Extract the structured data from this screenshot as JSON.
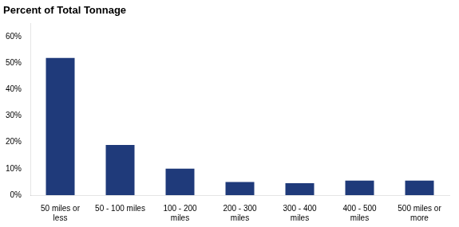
{
  "chart_data": {
    "type": "bar",
    "title": "Percent of Total Tonnage",
    "categories": [
      "50 miles or\nless",
      "50 - 100 miles",
      "100 - 200\nmiles",
      "200 - 300\nmiles",
      "300 - 400\nmiles",
      "400 - 500\nmiles",
      "500 miles or\nmore"
    ],
    "values": [
      52,
      19,
      10,
      5,
      4.5,
      5.5,
      5.5
    ],
    "color": "#1F3A7A",
    "ylim": [
      0,
      65
    ],
    "yticks": [
      {
        "value": 0,
        "label": "0%"
      },
      {
        "value": 10,
        "label": "10%"
      },
      {
        "value": 20,
        "label": "20%"
      },
      {
        "value": 30,
        "label": "30%"
      },
      {
        "value": 40,
        "label": "40%"
      },
      {
        "value": 50,
        "label": "50%"
      },
      {
        "value": 60,
        "label": "60%"
      }
    ],
    "grid": false
  }
}
